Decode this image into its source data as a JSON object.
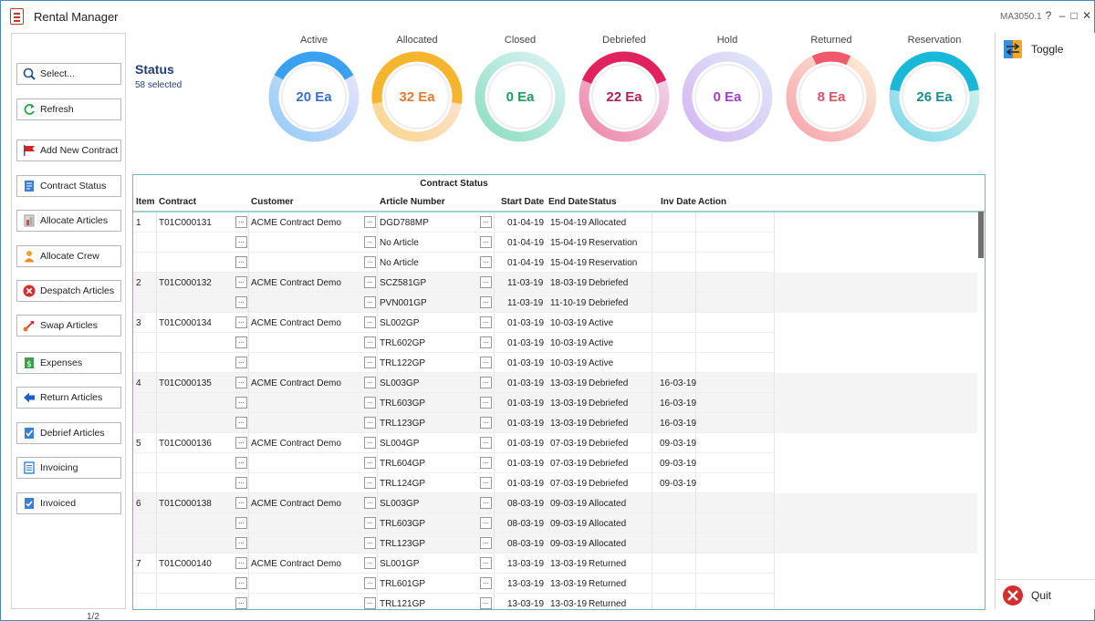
{
  "window": {
    "title": "Rental Manager",
    "version": "MA3050.1",
    "help": "?",
    "minimize": "–",
    "maximize": "□",
    "close": "✕"
  },
  "sidebar": {
    "items": [
      {
        "label": "Select...",
        "icon": "select-icon"
      },
      {
        "label": "Refresh",
        "icon": "refresh-icon"
      },
      {
        "label": "Add New Contract",
        "icon": "red-flag-icon"
      },
      {
        "label": "Contract Status",
        "icon": "document-icon"
      },
      {
        "label": "Allocate Articles",
        "icon": "allocate-articles-icon"
      },
      {
        "label": "Allocate Crew",
        "icon": "person-icon"
      },
      {
        "label": "Despatch Articles",
        "icon": "red-x-icon"
      },
      {
        "label": "Swap Articles",
        "icon": "swap-icon"
      },
      {
        "label": "Expenses",
        "icon": "dollar-icon"
      },
      {
        "label": "Return Articles",
        "icon": "left-arrow-icon"
      },
      {
        "label": "Debrief Articles",
        "icon": "check-document-icon"
      },
      {
        "label": "Invoicing",
        "icon": "invoice-icon"
      },
      {
        "label": "Invoiced",
        "icon": "invoiced-check-icon"
      }
    ],
    "page_indicator": "1/2"
  },
  "right_panel": {
    "toggle_label": "Toggle",
    "quit_label": "Quit"
  },
  "status": {
    "title": "Status",
    "selected": "58 selected"
  },
  "gauges": [
    {
      "label": "Active",
      "value": "20 Ea",
      "color": "#3b6fcf",
      "fill": 0.34,
      "c1": "#3aa0f0",
      "c2": "#e3d2f7"
    },
    {
      "label": "Allocated",
      "value": "32 Ea",
      "color": "#e07a2e",
      "fill": 0.55,
      "c1": "#f5b52f",
      "c2": "#fbd0c8"
    },
    {
      "label": "Closed",
      "value": "0 Ea",
      "color": "#1f9a5e",
      "fill": 0.0,
      "c1": "#2ec28b",
      "c2": "#bfe8ef"
    },
    {
      "label": "Debriefed",
      "value": "22 Ea",
      "color": "#b0205e",
      "fill": 0.38,
      "c1": "#e0235f",
      "c2": "#e5c0e8"
    },
    {
      "label": "Hold",
      "value": "0 Ea",
      "color": "#9b3fcf",
      "fill": 0.0,
      "c1": "#b07be8",
      "c2": "#c9d6f6"
    },
    {
      "label": "Returned",
      "value": "8 Ea",
      "color": "#e0506a",
      "fill": 0.14,
      "c1": "#f05a6a",
      "c2": "#fbe2b8"
    },
    {
      "label": "Reservation",
      "value": "26 Ea",
      "color": "#1a8f8c",
      "fill": 0.45,
      "c1": "#1ab8d8",
      "c2": "#c2ecd8"
    }
  ],
  "table": {
    "caption": "Contract Status",
    "headers": {
      "item": "Item",
      "contract": "Contract",
      "customer": "Customer",
      "article": "Article Number",
      "start": "Start Date",
      "end": "End Date",
      "status": "Status",
      "inv": "Inv Date",
      "action": "Action"
    },
    "dots": "...",
    "rows": [
      {
        "item": "1",
        "contract": "T01C000131",
        "customer": "ACME Contract Demo",
        "article": "DGD788MP",
        "start": "01-04-19",
        "end": "15-04-19",
        "status": "Allocated",
        "inv": ""
      },
      {
        "item": "",
        "contract": "",
        "customer": "",
        "article": "No Article",
        "start": "01-04-19",
        "end": "15-04-19",
        "status": "Reservation",
        "inv": ""
      },
      {
        "item": "",
        "contract": "",
        "customer": "",
        "article": "No Article",
        "start": "01-04-19",
        "end": "15-04-19",
        "status": "Reservation",
        "inv": ""
      },
      {
        "item": "2",
        "contract": "T01C000132",
        "customer": "ACME Contract Demo",
        "article": "SCZ581GP",
        "start": "11-03-19",
        "end": "18-03-19",
        "status": "Debriefed",
        "inv": ""
      },
      {
        "item": "",
        "contract": "",
        "customer": "",
        "article": "PVN001GP",
        "start": "11-03-19",
        "end": "11-10-19",
        "status": "Debriefed",
        "inv": ""
      },
      {
        "item": "3",
        "contract": "T01C000134",
        "customer": "ACME Contract Demo",
        "article": "SL002GP",
        "start": "01-03-19",
        "end": "10-03-19",
        "status": "Active",
        "inv": ""
      },
      {
        "item": "",
        "contract": "",
        "customer": "",
        "article": "TRL602GP",
        "start": "01-03-19",
        "end": "10-03-19",
        "status": "Active",
        "inv": ""
      },
      {
        "item": "",
        "contract": "",
        "customer": "",
        "article": "TRL122GP",
        "start": "01-03-19",
        "end": "10-03-19",
        "status": "Active",
        "inv": ""
      },
      {
        "item": "4",
        "contract": "T01C000135",
        "customer": "ACME Contract Demo",
        "article": "SL003GP",
        "start": "01-03-19",
        "end": "13-03-19",
        "status": "Debriefed",
        "inv": "16-03-19"
      },
      {
        "item": "",
        "contract": "",
        "customer": "",
        "article": "TRL603GP",
        "start": "01-03-19",
        "end": "13-03-19",
        "status": "Debriefed",
        "inv": "16-03-19"
      },
      {
        "item": "",
        "contract": "",
        "customer": "",
        "article": "TRL123GP",
        "start": "01-03-19",
        "end": "13-03-19",
        "status": "Debriefed",
        "inv": "16-03-19"
      },
      {
        "item": "5",
        "contract": "T01C000136",
        "customer": "ACME Contract Demo",
        "article": "SL004GP",
        "start": "01-03-19",
        "end": "07-03-19",
        "status": "Debriefed",
        "inv": "09-03-19"
      },
      {
        "item": "",
        "contract": "",
        "customer": "",
        "article": "TRL604GP",
        "start": "01-03-19",
        "end": "07-03-19",
        "status": "Debriefed",
        "inv": "09-03-19"
      },
      {
        "item": "",
        "contract": "",
        "customer": "",
        "article": "TRL124GP",
        "start": "01-03-19",
        "end": "07-03-19",
        "status": "Debriefed",
        "inv": "09-03-19"
      },
      {
        "item": "6",
        "contract": "T01C000138",
        "customer": "ACME Contract Demo",
        "article": "SL003GP",
        "start": "08-03-19",
        "end": "09-03-19",
        "status": "Allocated",
        "inv": ""
      },
      {
        "item": "",
        "contract": "",
        "customer": "",
        "article": "TRL603GP",
        "start": "08-03-19",
        "end": "09-03-19",
        "status": "Allocated",
        "inv": ""
      },
      {
        "item": "",
        "contract": "",
        "customer": "",
        "article": "TRL123GP",
        "start": "08-03-19",
        "end": "09-03-19",
        "status": "Allocated",
        "inv": ""
      },
      {
        "item": "7",
        "contract": "T01C000140",
        "customer": "ACME Contract Demo",
        "article": "SL001GP",
        "start": "13-03-19",
        "end": "13-03-19",
        "status": "Returned",
        "inv": ""
      },
      {
        "item": "",
        "contract": "",
        "customer": "",
        "article": "TRL601GP",
        "start": "13-03-19",
        "end": "13-03-19",
        "status": "Returned",
        "inv": ""
      },
      {
        "item": "",
        "contract": "",
        "customer": "",
        "article": "TRL121GP",
        "start": "13-03-19",
        "end": "13-03-19",
        "status": "Returned",
        "inv": ""
      }
    ]
  }
}
